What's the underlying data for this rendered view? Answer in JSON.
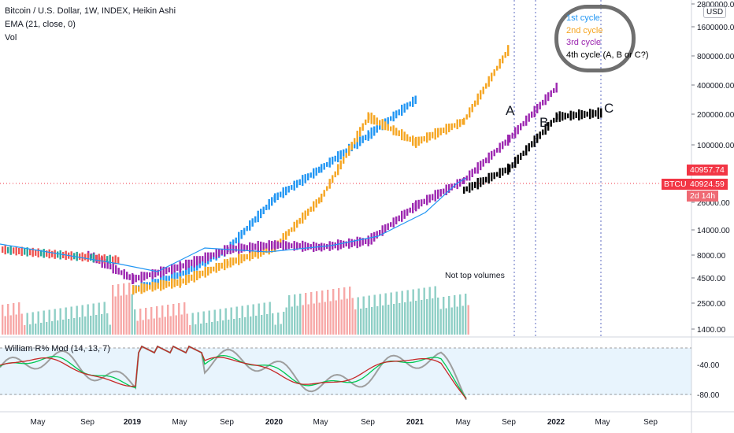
{
  "header": {
    "title": "Bitcoin / U.S. Dollar, 1W, INDEX, Heikin Ashi",
    "ema_label": "EMA (21, close, 0)",
    "vol_label": "Vol"
  },
  "cycles_legend": {
    "items": [
      {
        "label": "1st cycle",
        "color": "#2196f3"
      },
      {
        "label": "2nd cycle",
        "color": "#f5a623"
      },
      {
        "label": "3rd cycle",
        "color": "#9c27b0"
      },
      {
        "label": "4th cycle (A, B or C?)",
        "color": "#000000"
      }
    ]
  },
  "annotations": {
    "a": "A",
    "b": "B",
    "c": "C",
    "volume_note": "Not top volumes"
  },
  "price_axis": {
    "currency": "USD",
    "ticks": [
      "2800000.00",
      "1600000.00",
      "800000.00",
      "400000.00",
      "200000.00",
      "100000.00",
      "26000.00",
      "14000.00",
      "8000.00",
      "4500.00",
      "2500.00",
      "1400.00"
    ],
    "symbol_tag": "BTCUSD",
    "last_price_tag": "40957.74",
    "ha_close_tag": "40924.59",
    "countdown_tag": "2d 14h"
  },
  "oscillator": {
    "label": "William R% Mod (14, 13, 7)",
    "ticks": [
      "-40.00",
      "-80.00"
    ],
    "colors": {
      "fast": "#00c853",
      "slow": "#c62828",
      "raw": "#9e9e9e"
    }
  },
  "time_axis": {
    "ticks": [
      "May",
      "Sep",
      "2019",
      "May",
      "Sep",
      "2020",
      "May",
      "Sep",
      "2021",
      "May",
      "Sep",
      "2022",
      "May",
      "Sep"
    ]
  },
  "colors": {
    "up": "#26a69a",
    "down": "#ef5350",
    "ema": "#2196f3",
    "cycle1": "#2196f3",
    "cycle2": "#f5a623",
    "cycle3": "#9c27b0",
    "cycle4": "#000000",
    "accent_red": "#f23645"
  },
  "chart_data": {
    "type": "line",
    "title": "Bitcoin / U.S. Dollar, 1W, INDEX, Heikin Ashi",
    "y_scale": "log",
    "ylim": [
      1400,
      2800000
    ],
    "x": [
      "2018-05",
      "2018-09",
      "2019-01",
      "2019-05",
      "2019-09",
      "2020-01",
      "2020-05",
      "2020-09",
      "2021-01",
      "2021-05",
      "2021-09",
      "2022-01",
      "2022-05",
      "2022-09"
    ],
    "series": [
      {
        "name": "1st cycle",
        "values": [
          null,
          null,
          3500,
          5000,
          9000,
          30000,
          60000,
          130000,
          300000,
          null,
          null,
          null,
          null,
          null
        ]
      },
      {
        "name": "2nd cycle",
        "values": [
          null,
          null,
          3500,
          4200,
          6500,
          9500,
          30000,
          200000,
          110000,
          180000,
          1000000,
          null,
          null,
          null
        ]
      },
      {
        "name": "3rd cycle",
        "values": [
          null,
          8000,
          4500,
          6000,
          9000,
          10000,
          9500,
          11000,
          25000,
          45000,
          120000,
          400000,
          null,
          null
        ]
      },
      {
        "name": "4th cycle (A, B or C?)",
        "values": [
          null,
          null,
          null,
          null,
          null,
          null,
          null,
          null,
          null,
          36000,
          60000,
          200000,
          220000,
          null
        ]
      }
    ]
  }
}
